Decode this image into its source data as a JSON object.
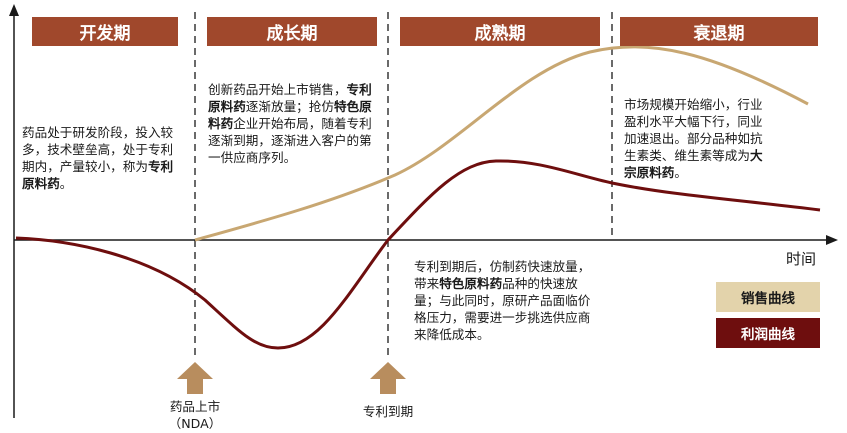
{
  "phases": [
    "开发期",
    "成长期",
    "成熟期",
    "衰退期"
  ],
  "axis": {
    "x_label": "时间"
  },
  "notes": {
    "development": {
      "pre": "药品处于研发阶段，投入较多，技术壁垒高，处于专利期内，产量较小，称为",
      "bold": "专利原料药",
      "post": "。"
    },
    "growth": {
      "p1": "创新药品开始上市销售，",
      "b1": "专利原料药",
      "p2": "逐渐放量；抢仿",
      "b2": "特色原料药",
      "p3": "企业开始布局，随着专利逐渐到期，逐渐进入客户的第一供应商序列。"
    },
    "maturity": {
      "p1": "专利到期后，仿制药快速放量，带来",
      "b1": "特色原料药",
      "p2": "品种的快速放量；与此同时，原研产品面临价格压力，需要进一步挑选供应商来降低成本。"
    },
    "decline": {
      "p1": "市场规模开始缩小，行业盈利水平大幅下行，同业加速退出。部分品种如抗生素类、维生素等成为",
      "b1": "大宗原料药",
      "p2": "。"
    }
  },
  "legend": {
    "sales": "销售曲线",
    "profit": "利润曲线"
  },
  "markers": {
    "launch": {
      "line1": "药品上市",
      "line2": "（NDA）"
    },
    "patent_expiry": "专利到期"
  },
  "colors": {
    "phase_header": "#a0482c",
    "sales_curve": "#c8a772",
    "profit_curve": "#6e0e0e",
    "arrow": "#b88d5e"
  }
}
